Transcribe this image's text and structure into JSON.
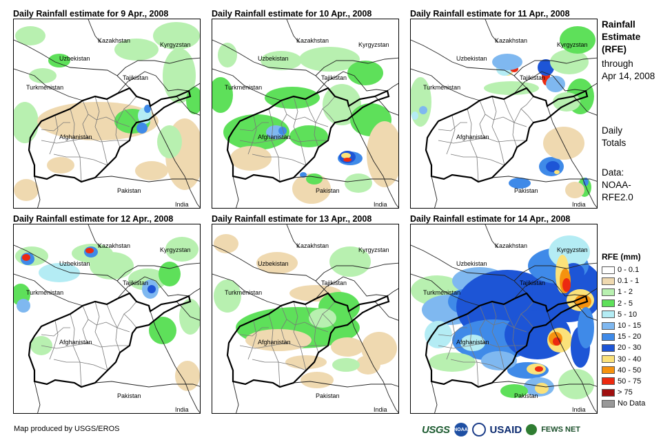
{
  "panels": [
    {
      "title": "Daily Rainfall estimate for 9 Apr., 2008"
    },
    {
      "title": "Daily Rainfall estimate for 10 Apr., 2008"
    },
    {
      "title": "Daily Rainfall estimate for 11 Apr., 2008"
    },
    {
      "title": "Daily Rainfall estimate for 12 Apr., 2008"
    },
    {
      "title": "Daily Rainfall estimate for 13 Apr., 2008"
    },
    {
      "title": "Daily Rainfall estimate for 14 Apr., 2008"
    }
  ],
  "countries": {
    "kazakhstan": "Kazakhstan",
    "kyrgyzstan": "Kyrgyzstan",
    "uzbekistan": "Uzbekistan",
    "tajikistan": "Tajikistan",
    "turkmenistan": "Turkmenistan",
    "afghanistan": "Afghanistan",
    "pakistan": "Pakistan",
    "india": "India"
  },
  "sidebar": {
    "title_line1": "Rainfall",
    "title_line2": "Estimate",
    "title_line3": "(RFE)",
    "through": "through",
    "date": "Apr 14, 2008",
    "daily": "Daily",
    "totals": "Totals",
    "data_label": "Data:",
    "source1": "NOAA-",
    "source2": "RFE2.0"
  },
  "legend": {
    "title": "RFE (mm)",
    "items": [
      {
        "label": "0 - 0.1",
        "color": "#ffffff"
      },
      {
        "label": "0.1 - 1",
        "color": "#efd9b0"
      },
      {
        "label": "1 - 2",
        "color": "#b8f0b0"
      },
      {
        "label": "2 - 5",
        "color": "#5ee05a"
      },
      {
        "label": "5 - 10",
        "color": "#b4ecf4"
      },
      {
        "label": "10 - 15",
        "color": "#7fb8f0"
      },
      {
        "label": "15 - 20",
        "color": "#3f8ae8"
      },
      {
        "label": "20 - 30",
        "color": "#1d55d6"
      },
      {
        "label": "30 - 40",
        "color": "#fbe27a"
      },
      {
        "label": "40 - 50",
        "color": "#f5920f"
      },
      {
        "label": "50 - 75",
        "color": "#ec2a10"
      },
      {
        "label": "> 75",
        "color": "#a01010"
      },
      {
        "label": "No Data",
        "color": "#999999"
      }
    ]
  },
  "footer": {
    "credit": "Map produced by USGS/EROS",
    "logo_usgs": "USGS",
    "logo_usaid": "USAID",
    "logo_fews": "FEWS NET"
  }
}
